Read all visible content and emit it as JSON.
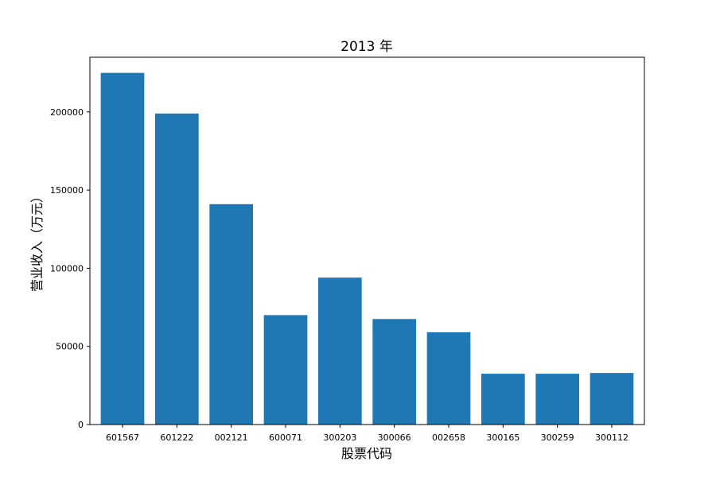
{
  "chart_data": {
    "type": "bar",
    "title": "2013 年",
    "xlabel": "股票代码",
    "ylabel": "营业收入（万元）",
    "categories": [
      "601567",
      "601222",
      "002121",
      "600071",
      "300203",
      "300066",
      "002658",
      "300165",
      "300259",
      "300112"
    ],
    "values": [
      225000,
      199000,
      141000,
      70000,
      94000,
      67500,
      59000,
      32500,
      32500,
      33000
    ],
    "ylim": [
      0,
      235000
    ],
    "yticks": [
      0,
      50000,
      100000,
      150000,
      200000
    ],
    "ytick_labels": [
      "0",
      "50000",
      "100000",
      "150000",
      "200000"
    ],
    "grid": false,
    "colors": {
      "bar": "#1f77b4",
      "axis": "#000000"
    }
  }
}
